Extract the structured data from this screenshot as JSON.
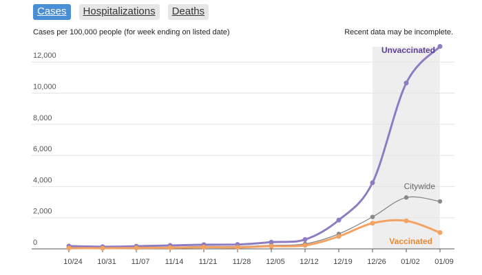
{
  "tabs": [
    {
      "label": "Cases",
      "active": true
    },
    {
      "label": "Hospitalizations",
      "active": false
    },
    {
      "label": "Deaths",
      "active": false
    }
  ],
  "subtitle": "Cases per 100,000 people (for week ending on listed date)",
  "note": "Recent data may be incomplete.",
  "colors": {
    "unvaccinated": "#8e7cc3",
    "unvaccinated_label": "#5b3e96",
    "citywide": "#888888",
    "vaccinated": "#f4a261",
    "vaccinated_label": "#e8892f",
    "incomplete_shade": "#eeeeee"
  },
  "chart_data": {
    "type": "line",
    "categories": [
      "10/24",
      "10/31",
      "11/07",
      "11/14",
      "11/21",
      "11/28",
      "12/05",
      "12/12",
      "12/19",
      "12/26",
      "01/02",
      "01/09"
    ],
    "ylim": [
      0,
      13000
    ],
    "yticks": [
      {
        "value": 0,
        "label": "0"
      },
      {
        "value": 2000,
        "label": "2,000"
      },
      {
        "value": 4000,
        "label": "4,000"
      },
      {
        "value": 6000,
        "label": "6,000"
      },
      {
        "value": 8000,
        "label": "8,000"
      },
      {
        "value": 10000,
        "label": "10,000"
      },
      {
        "value": 12000,
        "label": "12,000"
      }
    ],
    "shaded_region": {
      "from": "12/26",
      "to": "01/09"
    },
    "series": [
      {
        "name": "Unvaccinated",
        "key": "unvaccinated",
        "values": [
          180,
          140,
          170,
          220,
          270,
          280,
          430,
          600,
          1850,
          4250,
          10650,
          13000
        ]
      },
      {
        "name": "Citywide",
        "key": "citywide",
        "values": [
          80,
          70,
          90,
          110,
          160,
          150,
          230,
          320,
          960,
          2050,
          3300,
          3050
        ]
      },
      {
        "name": "Vaccinated",
        "key": "vaccinated",
        "values": [
          50,
          40,
          55,
          70,
          110,
          100,
          170,
          220,
          800,
          1650,
          1800,
          1050
        ]
      }
    ]
  }
}
